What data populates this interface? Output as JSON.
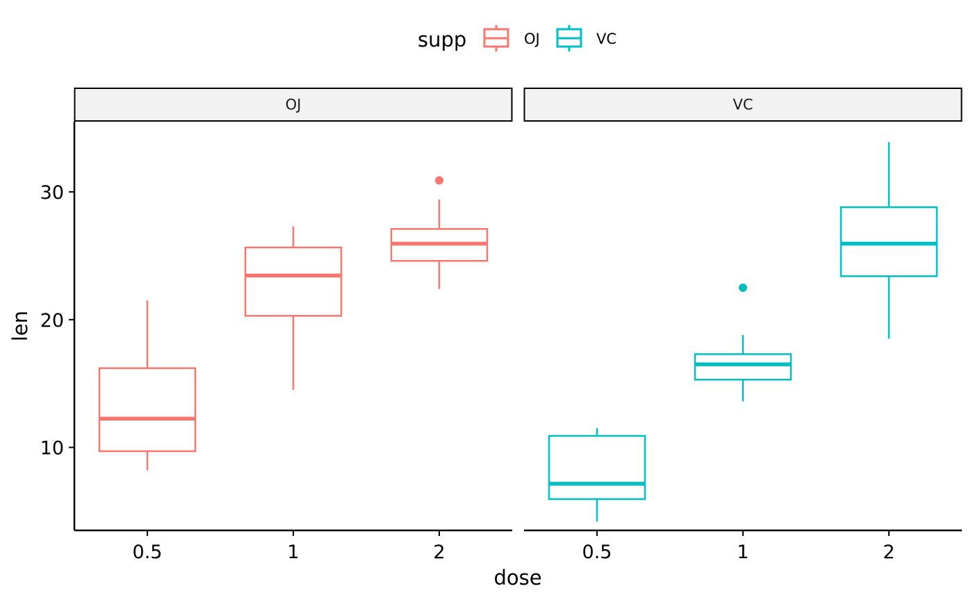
{
  "chart_data": {
    "type": "boxplot",
    "xlabel": "dose",
    "ylabel": "len",
    "categories": [
      "0.5",
      "1",
      "2"
    ],
    "ylim": [
      3.5,
      35.5
    ],
    "yticks": [
      10,
      20,
      30
    ],
    "legend": {
      "title": "supp",
      "position": "top",
      "entries": [
        {
          "label": "OJ",
          "color": "#F8766D"
        },
        {
          "label": "VC",
          "color": "#00BFC4"
        }
      ]
    },
    "facets": [
      {
        "label": "OJ",
        "color": "#F8766D",
        "boxes": [
          {
            "x": "0.5",
            "lower_whisker": 8.2,
            "q1": 9.7,
            "median": 12.25,
            "q3": 16.2,
            "upper_whisker": 21.5,
            "outliers": []
          },
          {
            "x": "1",
            "lower_whisker": 14.5,
            "q1": 20.3,
            "median": 23.45,
            "q3": 25.65,
            "upper_whisker": 27.3,
            "outliers": []
          },
          {
            "x": "2",
            "lower_whisker": 22.4,
            "q1": 24.6,
            "median": 25.95,
            "q3": 27.1,
            "upper_whisker": 29.4,
            "outliers": [
              30.9
            ]
          }
        ]
      },
      {
        "label": "VC",
        "color": "#00BFC4",
        "boxes": [
          {
            "x": "0.5",
            "lower_whisker": 4.2,
            "q1": 5.95,
            "median": 7.15,
            "q3": 10.9,
            "upper_whisker": 11.5,
            "outliers": []
          },
          {
            "x": "1",
            "lower_whisker": 13.6,
            "q1": 15.3,
            "median": 16.5,
            "q3": 17.3,
            "upper_whisker": 18.8,
            "outliers": [
              22.5
            ]
          },
          {
            "x": "2",
            "lower_whisker": 18.5,
            "q1": 23.4,
            "median": 25.95,
            "q3": 28.8,
            "upper_whisker": 33.9,
            "outliers": []
          }
        ]
      }
    ]
  }
}
